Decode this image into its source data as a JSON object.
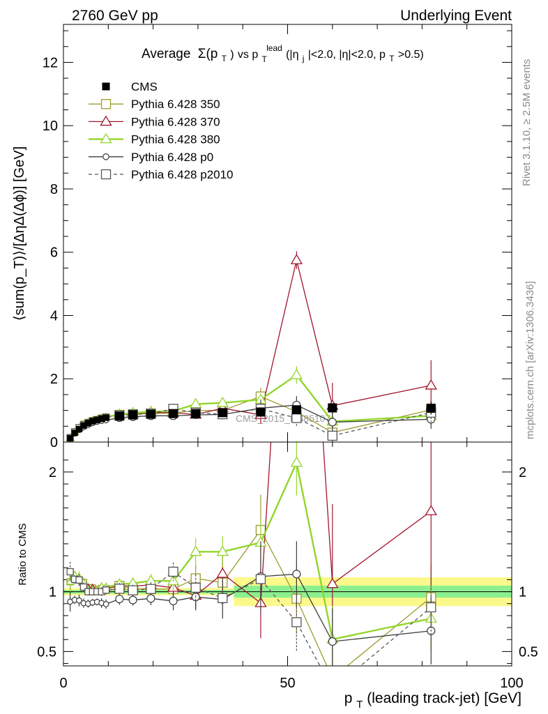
{
  "header": {
    "left": "2760 GeV pp",
    "right": "Underlying Event"
  },
  "side": {
    "rivet": "Rivet 3.1.10, ≥ 2.5M events",
    "mcplots": "mcplots.cern.ch [arXiv:1306.3436]"
  },
  "watermark": "CMS_2015_I1385107",
  "chart_data": [
    {
      "type": "line",
      "panel": "main",
      "title": "Average Σ(p_T) vs p_T^lead (|η_j|<2.0, |η|<2.0, p_T>0.5)",
      "title_parts": {
        "lead": "Average",
        "sigma": "Σ(p",
        "sigma_sub": "T",
        "sigma_close": ")",
        "vs": " vs p",
        "vs_sub": "T",
        "vs_sup": "lead",
        "cuts_a": " (|η",
        "cuts_sub": "j",
        "cuts_b": "|<2.0, |η|<2.0, p",
        "cuts_sub2": "T",
        "cuts_c": ">0.5)"
      },
      "xlabel": "p_T (leading track-jet) [GeV]",
      "xlabel_parts": {
        "p": "p",
        "sub": "T",
        "rest": " (leading track-jet) [GeV]"
      },
      "ylabel": "⟨sum(p_T)⟩/[ΔηΔ(Δϕ)] [GeV]",
      "xlim": [
        0,
        100
      ],
      "ylim": [
        0,
        13.2
      ],
      "yticks": [
        0,
        2,
        4,
        6,
        8,
        10,
        12
      ],
      "xticks": [
        0,
        50,
        100
      ],
      "x": [
        1.5,
        2.5,
        3.5,
        4.5,
        5.5,
        6.5,
        7.5,
        8.5,
        9.5,
        12.5,
        15.5,
        19.5,
        24.5,
        29.5,
        35.5,
        44.0,
        52.0,
        60.0,
        82.0
      ],
      "series": [
        {
          "name": "CMS",
          "color": "#000000",
          "marker": "filled-square",
          "line": "none",
          "values": [
            0.12,
            0.29,
            0.41,
            0.52,
            0.6,
            0.66,
            0.7,
            0.74,
            0.77,
            0.82,
            0.86,
            0.88,
            0.9,
            0.9,
            0.93,
            0.95,
            1.02,
            1.08,
            1.07
          ],
          "errors": [
            0.01,
            0.01,
            0.02,
            0.02,
            0.02,
            0.02,
            0.02,
            0.02,
            0.02,
            0.02,
            0.02,
            0.03,
            0.03,
            0.04,
            0.05,
            0.07,
            0.1,
            0.15,
            0.2
          ]
        },
        {
          "name": "Pythia 6.428 350",
          "color": "#9c9a2e",
          "marker": "open-square",
          "line": "solid",
          "values": [
            0.13,
            0.32,
            0.45,
            0.56,
            0.62,
            0.68,
            0.71,
            0.76,
            0.79,
            0.86,
            0.88,
            0.9,
            0.92,
            1.0,
            1.0,
            1.44,
            0.96,
            0.3,
            1.02
          ],
          "errors": [
            0.01,
            0.01,
            0.02,
            0.02,
            0.02,
            0.02,
            0.02,
            0.03,
            0.03,
            0.04,
            0.04,
            0.05,
            0.07,
            0.1,
            0.15,
            0.28,
            0.3,
            0.3,
            0.3
          ]
        },
        {
          "name": "Pythia 6.428 370",
          "color": "#a0152c",
          "marker": "open-triangle",
          "line": "solid",
          "values": [
            0.13,
            0.32,
            0.45,
            0.56,
            0.62,
            0.68,
            0.71,
            0.76,
            0.79,
            0.86,
            0.9,
            0.93,
            0.93,
            0.87,
            1.07,
            0.86,
            5.75,
            1.15,
            1.79
          ],
          "errors": [
            0.01,
            0.01,
            0.02,
            0.02,
            0.02,
            0.02,
            0.02,
            0.03,
            0.03,
            0.04,
            0.04,
            0.05,
            0.07,
            0.1,
            0.15,
            0.28,
            0.28,
            0.72,
            0.8
          ]
        },
        {
          "name": "Pythia 6.428 380",
          "color": "#92d62b",
          "marker": "open-triangle",
          "line": "solid",
          "values": [
            0.13,
            0.33,
            0.46,
            0.56,
            0.61,
            0.67,
            0.71,
            0.77,
            0.8,
            0.87,
            0.92,
            0.96,
            0.98,
            1.2,
            1.24,
            1.34,
            2.12,
            0.65,
            0.83
          ],
          "errors": [
            0.01,
            0.01,
            0.02,
            0.02,
            0.02,
            0.02,
            0.02,
            0.03,
            0.03,
            0.04,
            0.04,
            0.05,
            0.07,
            0.1,
            0.12,
            0.18,
            0.28,
            0.3,
            0.3
          ]
        },
        {
          "name": "Pythia 6.428 p0",
          "color": "#3b3b3b",
          "marker": "open-circle",
          "line": "solid",
          "values": [
            0.11,
            0.27,
            0.38,
            0.47,
            0.54,
            0.6,
            0.64,
            0.67,
            0.69,
            0.77,
            0.8,
            0.83,
            0.83,
            0.86,
            0.87,
            1.07,
            1.17,
            0.63,
            0.72
          ],
          "errors": [
            0.01,
            0.01,
            0.02,
            0.02,
            0.02,
            0.02,
            0.02,
            0.03,
            0.03,
            0.04,
            0.04,
            0.05,
            0.07,
            0.1,
            0.15,
            0.28,
            0.28,
            0.3,
            0.3
          ]
        },
        {
          "name": "Pythia 6.428 p2010",
          "color": "#555555",
          "marker": "open-square",
          "line": "dashed",
          "values": [
            0.14,
            0.32,
            0.45,
            0.54,
            0.6,
            0.66,
            0.7,
            0.74,
            0.78,
            0.84,
            0.87,
            0.9,
            1.05,
            0.93,
            0.88,
            1.05,
            0.76,
            0.2,
            0.93
          ],
          "errors": [
            0.01,
            0.01,
            0.02,
            0.02,
            0.02,
            0.02,
            0.02,
            0.03,
            0.03,
            0.04,
            0.04,
            0.05,
            0.07,
            0.1,
            0.15,
            0.28,
            0.25,
            0.2,
            0.3
          ]
        }
      ],
      "legend_position": "top-left",
      "grid": false
    },
    {
      "type": "line",
      "panel": "ratio",
      "ylabel": "Ratio to CMS",
      "ylim": [
        0.38,
        2.25
      ],
      "yticks": [
        0.5,
        1,
        2
      ],
      "ytick_labels": [
        "0.5",
        "1",
        "2"
      ],
      "band_inner": 0.05,
      "band_outer": 0.12
    }
  ]
}
